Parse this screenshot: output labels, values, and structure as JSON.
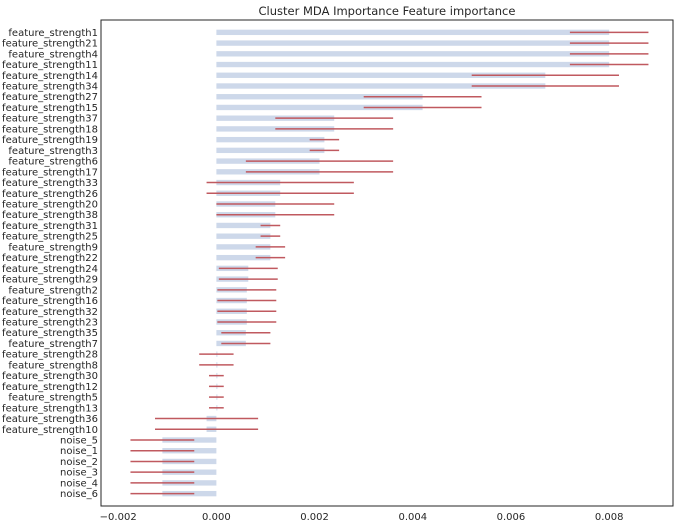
{
  "chart_data": {
    "type": "bar",
    "orientation": "horizontal",
    "title": "Cluster MDA Importance Feature importance",
    "xlabel": "",
    "ylabel": "",
    "xlim": [
      -0.00235,
      0.0093
    ],
    "xticks": [
      -0.002,
      0.0,
      0.002,
      0.004,
      0.006,
      0.008
    ],
    "xtick_labels": [
      "−0.002",
      "0.000",
      "0.002",
      "0.004",
      "0.006",
      "0.008"
    ],
    "grid": false,
    "bar_color": "#cdd8ea",
    "error_color": "#c0595f",
    "categories": [
      "feature_strength1",
      "feature_strength21",
      "feature_strength4",
      "feature_strength11",
      "feature_strength14",
      "feature_strength34",
      "feature_strength27",
      "feature_strength15",
      "feature_strength37",
      "feature_strength18",
      "feature_strength19",
      "feature_strength3",
      "feature_strength6",
      "feature_strength17",
      "feature_strength33",
      "feature_strength26",
      "feature_strength20",
      "feature_strength38",
      "feature_strength31",
      "feature_strength25",
      "feature_strength9",
      "feature_strength22",
      "feature_strength24",
      "feature_strength29",
      "feature_strength2",
      "feature_strength16",
      "feature_strength32",
      "feature_strength23",
      "feature_strength35",
      "feature_strength7",
      "feature_strength28",
      "feature_strength8",
      "feature_strength30",
      "feature_strength12",
      "feature_strength5",
      "feature_strength13",
      "feature_strength36",
      "feature_strength10",
      "noise_5",
      "noise_1",
      "noise_2",
      "noise_3",
      "noise_4",
      "noise_6"
    ],
    "values": [
      0.008,
      0.008,
      0.008,
      0.008,
      0.0067,
      0.0067,
      0.0042,
      0.0042,
      0.0024,
      0.0024,
      0.0022,
      0.0022,
      0.0021,
      0.0021,
      0.0013,
      0.0013,
      0.0012,
      0.0012,
      0.0011,
      0.0011,
      0.0011,
      0.0011,
      0.00065,
      0.00065,
      0.00062,
      0.00062,
      0.00062,
      0.00062,
      0.0006,
      0.0006,
      0.0,
      0.0,
      0.0,
      0.0,
      0.0,
      0.0,
      -0.0002,
      -0.0002,
      -0.0011,
      -0.0011,
      -0.0011,
      -0.0011,
      -0.0011,
      -0.0011
    ],
    "errors": [
      0.0008,
      0.0008,
      0.0008,
      0.0008,
      0.0015,
      0.0015,
      0.0012,
      0.0012,
      0.0012,
      0.0012,
      0.0003,
      0.0003,
      0.0015,
      0.0015,
      0.0015,
      0.0015,
      0.0012,
      0.0012,
      0.0002,
      0.0002,
      0.0003,
      0.0003,
      0.0006,
      0.0006,
      0.0006,
      0.0006,
      0.0006,
      0.0006,
      0.0005,
      0.0005,
      0.00035,
      0.00035,
      0.00015,
      0.00015,
      0.00015,
      0.00015,
      0.00105,
      0.00105,
      0.00065,
      0.00065,
      0.00065,
      0.00065,
      0.00065,
      0.00065
    ]
  }
}
